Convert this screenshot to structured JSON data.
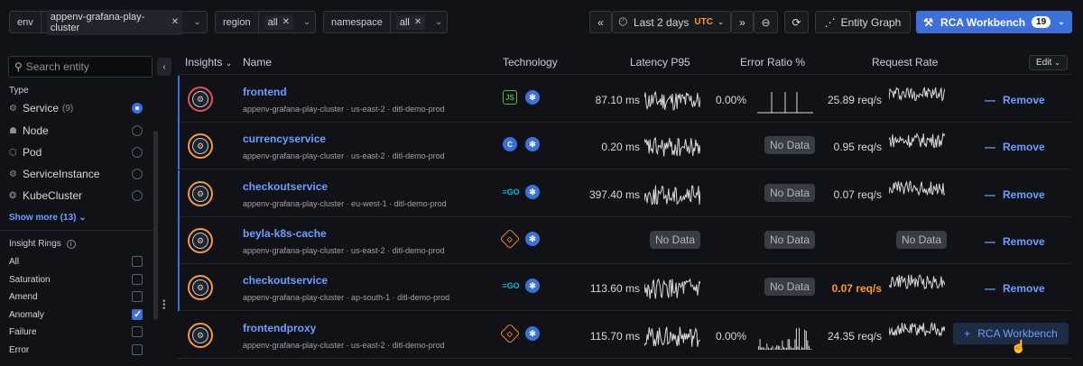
{
  "filters": [
    {
      "label": "env",
      "value": "appenv-grafana-play-cluster"
    },
    {
      "label": "region",
      "value": "all"
    },
    {
      "label": "namespace",
      "value": "all"
    }
  ],
  "time": {
    "range": "Last 2 days",
    "tz": "UTC"
  },
  "toolbar": {
    "entity_graph": "Entity Graph",
    "rca": "RCA Workbench",
    "rca_count": "19"
  },
  "sidebar": {
    "search_placeholder": "Search entity",
    "type_title": "Type",
    "types": [
      {
        "label": "Service",
        "count": "(9)",
        "icon": "service-icon",
        "selected": true
      },
      {
        "label": "Node",
        "count": "",
        "icon": "node-icon",
        "selected": false
      },
      {
        "label": "Pod",
        "count": "",
        "icon": "pod-icon",
        "selected": false
      },
      {
        "label": "ServiceInstance",
        "count": "",
        "icon": "instance-icon",
        "selected": false
      },
      {
        "label": "KubeCluster",
        "count": "",
        "icon": "cluster-icon",
        "selected": false
      }
    ],
    "show_more": "Show more (13)",
    "rings_title": "Insight Rings",
    "rings": [
      {
        "label": "All",
        "checked": false
      },
      {
        "label": "Saturation",
        "checked": false
      },
      {
        "label": "Amend",
        "checked": false
      },
      {
        "label": "Anomaly",
        "checked": true
      },
      {
        "label": "Failure",
        "checked": false
      },
      {
        "label": "Error",
        "checked": false
      }
    ]
  },
  "table": {
    "headers": {
      "insights": "Insights",
      "name": "Name",
      "technology": "Technology",
      "latency": "Latency P95",
      "error": "Error Ratio %",
      "request": "Request Rate",
      "edit": "Edit"
    },
    "rows": [
      {
        "name": "frontend",
        "meta": "appenv-grafana-play-cluster  ·  us-east-2  ·  ditl-demo-prod",
        "tech": "nodejs",
        "ring": "red",
        "latency": "87.10 ms",
        "error": "0.00%",
        "request": "25.89 req/s",
        "request_warn": false,
        "action": "Remove"
      },
      {
        "name": "currencyservice",
        "meta": "appenv-grafana-play-cluster  ·  us-east-2  ·  ditl-demo-prod",
        "tech": "cpp",
        "ring": "orange",
        "latency": "0.20 ms",
        "error": "No Data",
        "request": "0.95 req/s",
        "request_warn": false,
        "action": "Remove"
      },
      {
        "name": "checkoutservice",
        "meta": "appenv-grafana-play-cluster  ·  eu-west-1  ·  ditl-demo-prod",
        "tech": "go",
        "ring": "orange",
        "latency": "397.40 ms",
        "error": "No Data",
        "request": "0.07 req/s",
        "request_warn": false,
        "action": "Remove"
      },
      {
        "name": "beyla-k8s-cache",
        "meta": "appenv-grafana-play-cluster  ·  us-east-2  ·  ditl-demo-prod",
        "tech": "rust",
        "ring": "orange",
        "latency": "No Data",
        "error": "No Data",
        "request": "No Data",
        "request_warn": false,
        "action": "Remove"
      },
      {
        "name": "checkoutservice",
        "meta": "appenv-grafana-play-cluster  ·  ap-south-1  ·  ditl-demo-prod",
        "tech": "go",
        "ring": "orange",
        "latency": "113.60 ms",
        "error": "No Data",
        "request": "0.07 req/s",
        "request_warn": true,
        "action": "Remove"
      },
      {
        "name": "frontendproxy",
        "meta": "appenv-grafana-play-cluster  ·  us-east-2  ·  ditl-demo-prod",
        "tech": "rust",
        "ring": "orange",
        "latency": "115.70 ms",
        "error": "0.00%",
        "request": "24.35 req/s",
        "request_warn": false,
        "action": "RCA Workbench"
      }
    ]
  },
  "colors": {
    "accent": "#3d71d9",
    "link": "#6e9fff",
    "warn": "#ff9830",
    "ring_red": "#e0525a",
    "ring_orange": "#f2994a"
  }
}
